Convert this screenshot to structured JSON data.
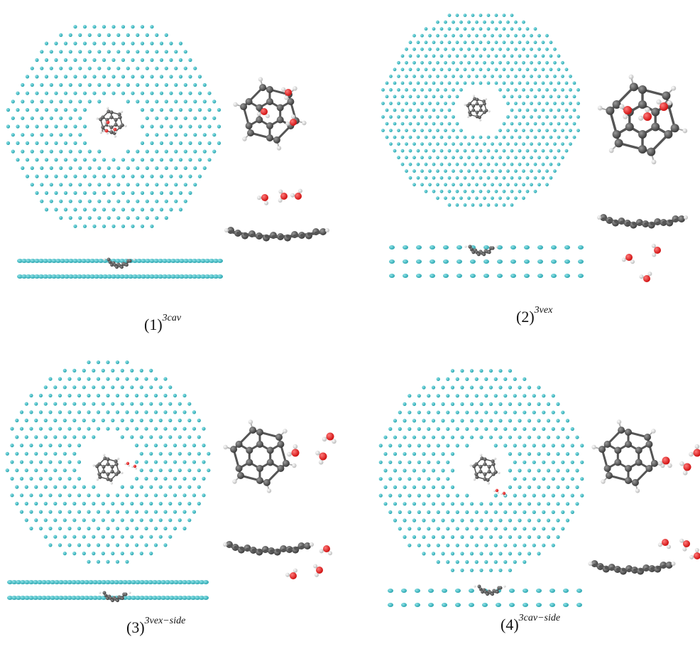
{
  "panels": [
    {
      "label": "(1)",
      "superscript": "3cav"
    },
    {
      "label": "(2)",
      "superscript": "3vex"
    },
    {
      "label": "(3)",
      "superscript": "3vex−side"
    },
    {
      "label": "(4)",
      "superscript": "3cav−side"
    }
  ],
  "colors": {
    "surface_atom": "#2aa6b0",
    "surface_atom_highlight": "#8fe3e8",
    "carbon": "#3a3a3a",
    "hydrogen": "#e8e8e8",
    "oxygen": "#d01010"
  },
  "atom_icons": [
    "surface-atom-icon",
    "carbon-atom-icon",
    "hydrogen-atom-icon",
    "oxygen-atom-icon"
  ]
}
